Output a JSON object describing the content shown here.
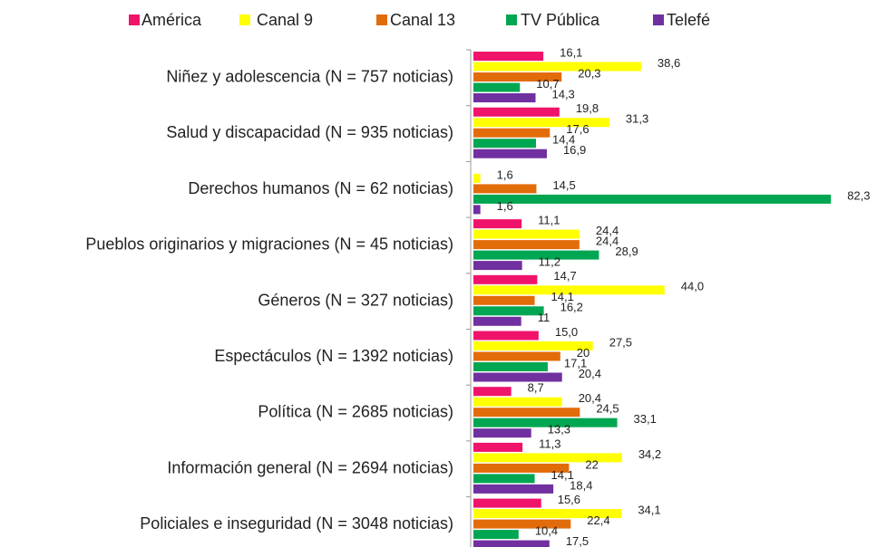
{
  "chart_data": {
    "type": "hbar",
    "categories": [
      "Niñez y adolescencia (N = 757 noticias)",
      "Salud y discapacidad (N = 935 noticias)",
      "Derechos humanos (N = 62 noticias)",
      "Pueblos originarios y migraciones (N = 45 noticias)",
      "Géneros (N = 327 noticias)",
      "Espectáculos (N = 1392 noticias)",
      "Política (N = 2685 noticias)",
      "Información general (N = 2694 noticias)",
      "Policiales e inseguridad (N = 3048 noticias)"
    ],
    "series": [
      {
        "name": "América",
        "color": "#f0136a",
        "values": [
          16.1,
          19.8,
          null,
          11.1,
          14.7,
          15.0,
          8.7,
          11.3,
          15.6
        ],
        "value_labels": [
          "16,1",
          "19,8",
          null,
          "11,1",
          "14,7",
          "15,0",
          "8,7",
          "11,3",
          "15,6"
        ]
      },
      {
        "name": "Canal 9",
        "color": "#ffff00",
        "values": [
          38.6,
          31.3,
          1.6,
          24.4,
          44.0,
          27.5,
          20.4,
          34.2,
          34.1
        ],
        "value_labels": [
          "38,6",
          "31,3",
          "1,6",
          "24,4",
          "44,0",
          "27,5",
          "20,4",
          "34,2",
          "34,1"
        ]
      },
      {
        "name": "Canal 13",
        "color": "#e36c0a",
        "values": [
          20.3,
          17.6,
          14.5,
          24.4,
          14.1,
          20,
          24.5,
          22,
          22.4
        ],
        "value_labels": [
          "20,3",
          "17,6",
          "14,5",
          "24,4",
          "14,1",
          "20",
          "24,5",
          "22",
          "22,4"
        ]
      },
      {
        "name": "TV Pública",
        "color": "#00a651",
        "values": [
          10.7,
          14.4,
          82.3,
          28.9,
          16.2,
          17.1,
          33.1,
          14.1,
          10.4
        ],
        "value_labels": [
          "10,7",
          "14,4",
          "82,3",
          "28,9",
          "16,2",
          "17,1",
          "33,1",
          "14,1",
          "10,4"
        ]
      },
      {
        "name": "Telefé",
        "color": "#7030a0",
        "values": [
          14.3,
          16.9,
          1.6,
          11.2,
          11,
          20.4,
          13.3,
          18.4,
          17.5
        ],
        "value_labels": [
          "14,3",
          "16,9",
          "1,6",
          "11,2",
          "11",
          "20,4",
          "13,3",
          "18,4",
          "17,5"
        ]
      }
    ]
  }
}
